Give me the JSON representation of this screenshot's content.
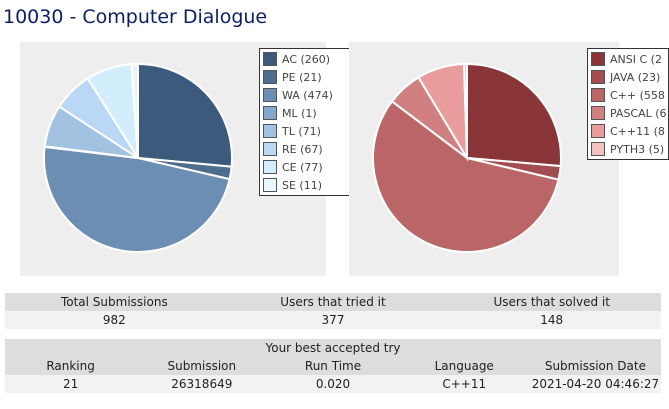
{
  "title": "10030 - Computer Dialogue",
  "verdict_chart": {
    "items": [
      {
        "label": "AC (260)",
        "value": 260,
        "color": "#3b5a7c"
      },
      {
        "label": "PE (21)",
        "value": 21,
        "color": "#4d6d8e"
      },
      {
        "label": "WA (474)",
        "value": 474,
        "color": "#6b8eb2"
      },
      {
        "label": "ML (1)",
        "value": 1,
        "color": "#84a8cc"
      },
      {
        "label": "TL (71)",
        "value": 71,
        "color": "#a2c2e2"
      },
      {
        "label": "RE (67)",
        "value": 67,
        "color": "#bad8f5"
      },
      {
        "label": "CE (77)",
        "value": 77,
        "color": "#d2eefc"
      },
      {
        "label": "SE (11)",
        "value": 11,
        "color": "#e8f7fd"
      }
    ]
  },
  "language_chart": {
    "items": [
      {
        "label": "ANSI C (2",
        "value": 260,
        "color": "#8a3538"
      },
      {
        "label": "JAVA (23)",
        "value": 23,
        "color": "#a24d50"
      },
      {
        "label": "C++ (558",
        "value": 558,
        "color": "#bb6666"
      },
      {
        "label": "PASCAL (6",
        "value": 60,
        "color": "#d08080"
      },
      {
        "label": "C++11 (8",
        "value": 80,
        "color": "#e89c9c"
      },
      {
        "label": "PYTH3 (5)",
        "value": 5,
        "color": "#f4c0c0"
      }
    ]
  },
  "chart_data": [
    {
      "type": "pie",
      "labels": [
        "AC",
        "PE",
        "WA",
        "ML",
        "TL",
        "RE",
        "CE",
        "SE"
      ],
      "values": [
        260,
        21,
        474,
        1,
        71,
        67,
        77,
        11
      ],
      "legend_position": "right"
    },
    {
      "type": "pie",
      "labels": [
        "ANSI C",
        "JAVA",
        "C++",
        "PASCAL",
        "C++11",
        "PYTH3"
      ],
      "values": [
        260,
        23,
        558,
        60,
        80,
        5
      ],
      "legend_position": "right"
    }
  ],
  "stats": {
    "headers": [
      "Total Submissions",
      "Users that tried it",
      "Users that solved it"
    ],
    "values": [
      "982",
      "377",
      "148"
    ]
  },
  "best_try": {
    "caption": "Your best accepted try",
    "headers": [
      "Ranking",
      "Submission",
      "Run Time",
      "Language",
      "Submission Date"
    ],
    "values": [
      "21",
      "26318649",
      "0.020",
      "C++11",
      "2021-04-20 04:46:27"
    ]
  }
}
